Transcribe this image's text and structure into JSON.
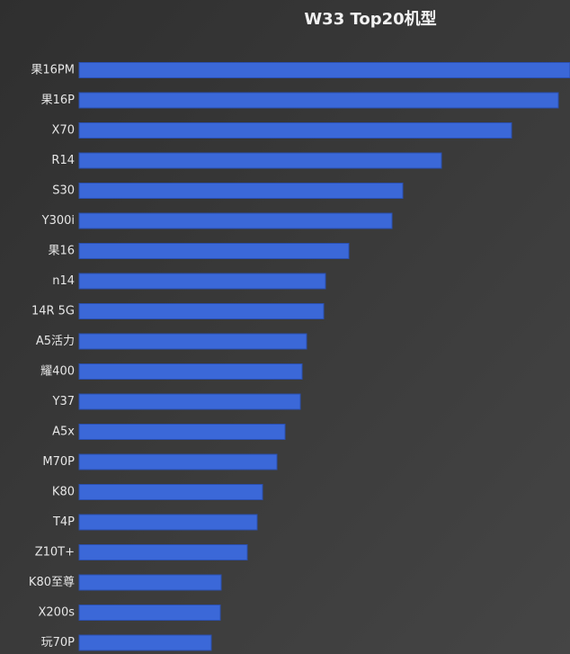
{
  "chart_data": {
    "type": "hbar",
    "title": "W33 Top20机型",
    "categories": [
      "果16PM",
      "果16P",
      "X70",
      "R14",
      "S30",
      "Y300i",
      "果16",
      "n14",
      "14R 5G",
      "A5活力",
      "耀400",
      "Y37",
      "A5x",
      "M70P",
      "K80",
      "T4P",
      "Z10T+",
      "K80至尊",
      "X200s",
      "玩70P"
    ],
    "values": [
      546,
      533,
      481,
      403,
      360,
      348,
      300,
      274,
      272,
      253,
      248,
      246,
      229,
      220,
      204,
      198,
      187,
      158,
      157,
      147
    ],
    "color": "#3b68d8",
    "xlim": [
      0,
      546
    ]
  }
}
